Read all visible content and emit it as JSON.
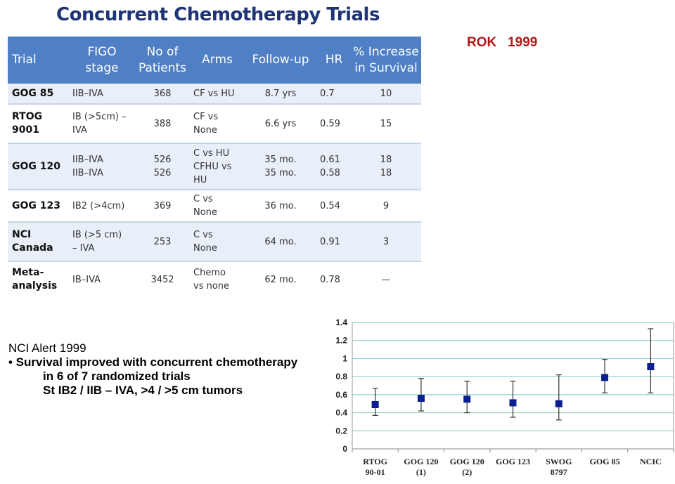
{
  "title": "Concurrent Chemotherapy Trials",
  "annotation": "ROK   1999",
  "table": {
    "headers": [
      "Trial",
      "FIGO stage",
      "No of Patients",
      "Arms",
      "Follow-up",
      "HR",
      "% Increase in Survival"
    ],
    "rows": [
      {
        "trial": "GOG 85",
        "stage": [
          "IIB–IVA"
        ],
        "patients": [
          "368"
        ],
        "arms": [
          "CF vs HU"
        ],
        "followup": [
          "8.7 yrs"
        ],
        "hr": [
          "0.7"
        ],
        "increase": [
          "10"
        ]
      },
      {
        "trial": "RTOG 9001",
        "stage": [
          "IB (>5cm) –",
          "IVA"
        ],
        "patients": [
          "388"
        ],
        "arms": [
          "CF vs",
          "None"
        ],
        "followup": [
          "6.6 yrs"
        ],
        "hr": [
          "0.59"
        ],
        "increase": [
          "15"
        ]
      },
      {
        "trial": "GOG 120",
        "stage": [
          "IIB–IVA",
          "IIB–IVA"
        ],
        "patients": [
          "526",
          "526"
        ],
        "arms": [
          "C vs HU",
          "CFHU vs",
          "HU"
        ],
        "followup": [
          "35 mo.",
          "35 mo."
        ],
        "hr": [
          "0.61",
          "0.58"
        ],
        "increase": [
          "18",
          "18"
        ]
      },
      {
        "trial": "GOG 123",
        "stage": [
          "IB2 (>4cm)"
        ],
        "patients": [
          "369"
        ],
        "arms": [
          "C vs",
          "None"
        ],
        "followup": [
          "36 mo."
        ],
        "hr": [
          "0.54"
        ],
        "increase": [
          "9"
        ]
      },
      {
        "trial": "NCI Canada",
        "stage": [
          "IB (>5 cm)",
          "– IVA"
        ],
        "patients": [
          "253"
        ],
        "arms": [
          "C vs",
          "None"
        ],
        "followup": [
          "64 mo."
        ],
        "hr": [
          "0.91"
        ],
        "increase": [
          "3"
        ]
      },
      {
        "trial": "Meta-analysis",
        "stage": [
          "IB–IVA"
        ],
        "patients": [
          "3452"
        ],
        "arms": [
          "Chemo",
          "vs none"
        ],
        "followup": [
          "62 mo."
        ],
        "hr": [
          "0.78"
        ],
        "increase": [
          "—"
        ]
      }
    ]
  },
  "alert": {
    "heading": "NCI Alert 1999",
    "bullet": "•  Survival improved with concurrent chemotherapy",
    "line2": "in 6 of 7 randomized trials",
    "line3": "St  IB2 / IIB – IVA, >4 / >5 cm tumors"
  },
  "chart_data": {
    "type": "scatter",
    "title": "",
    "xlabel": "",
    "ylabel": "",
    "categories": [
      "RTOG 90-01",
      "GOG 120 (1)",
      "GOG 120 (2)",
      "GOG 123",
      "SWOG 8797",
      "GOG 85",
      "NCIC"
    ],
    "category_lines": [
      [
        "RTOG",
        "90-01"
      ],
      [
        "GOG 120",
        "(1)"
      ],
      [
        "GOG 120",
        "(2)"
      ],
      [
        "GOG 123",
        ""
      ],
      [
        "SWOG",
        "8797"
      ],
      [
        "GOG 85",
        ""
      ],
      [
        "NCIC",
        ""
      ]
    ],
    "values": [
      0.49,
      0.56,
      0.55,
      0.51,
      0.5,
      0.79,
      0.91
    ],
    "lower": [
      0.37,
      0.42,
      0.4,
      0.35,
      0.32,
      0.62,
      0.62
    ],
    "upper": [
      0.67,
      0.78,
      0.75,
      0.75,
      0.82,
      0.99,
      1.33
    ],
    "ylim": [
      0,
      1.4
    ],
    "yticks": [
      "0",
      "0.2",
      "0.4",
      "0.6",
      "0.8",
      "1",
      "1.2",
      "1.4"
    ],
    "grid": true,
    "marker_color": "#0a1f8f",
    "grid_color": "#7fc6c6"
  }
}
